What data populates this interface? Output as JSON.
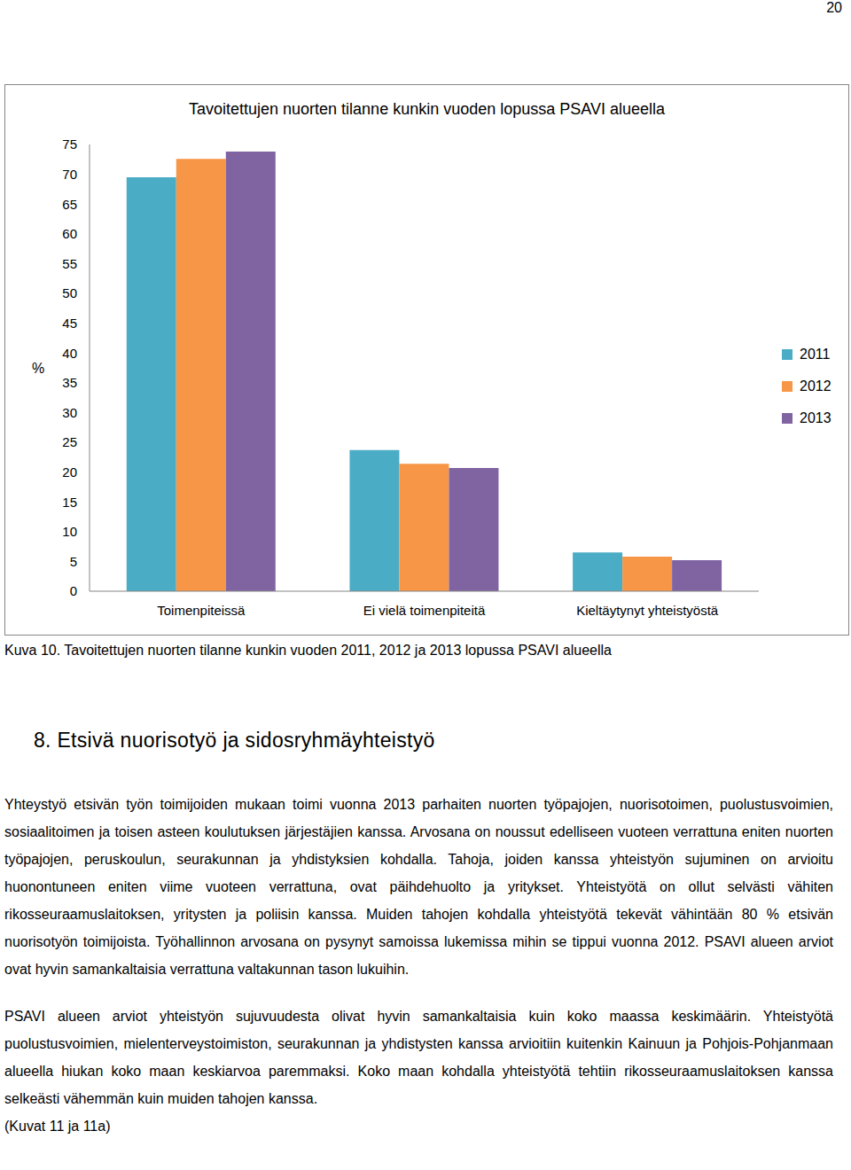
{
  "page_number": "20",
  "chart_data": {
    "type": "bar",
    "title": "Tavoitettujen nuorten tilanne kunkin vuoden lopussa PSAVI alueella",
    "y_label": "%",
    "categories": [
      "Toimenpiteissä",
      "Ei vielä toimenpiteitä",
      "Kieltäytynyt yhteistyöstä"
    ],
    "series": [
      {
        "name": "2011",
        "color": "#4bacc6",
        "values": [
          69.5,
          23.7,
          6.5
        ]
      },
      {
        "name": "2012",
        "color": "#f79646",
        "values": [
          72.6,
          21.4,
          5.8
        ]
      },
      {
        "name": "2013",
        "color": "#8064a2",
        "values": [
          73.8,
          20.7,
          5.2
        ]
      }
    ],
    "ylim": [
      0,
      75
    ],
    "yticks": [
      0,
      5,
      10,
      15,
      20,
      25,
      30,
      35,
      40,
      45,
      50,
      55,
      60,
      65,
      70,
      75
    ],
    "grid": false,
    "legend": "right",
    "data_labels": false
  },
  "caption": "Kuva 10. Tavoitettujen nuorten tilanne kunkin vuoden 2011, 2012 ja 2013 lopussa PSAVI alueella",
  "heading": "8. Etsivä nuorisotyö ja sidosryhmäyhteistyö",
  "paragraphs": [
    "Yhteystyö etsivän työn toimijoiden mukaan toimi vuonna 2013 parhaiten nuorten työpajojen, nuorisotoimen, puolustusvoimien, sosiaalitoimen ja toisen asteen koulutuksen järjestäjien kanssa. Arvosana on noussut edelliseen vuoteen verrattuna eniten nuorten työpajojen, peruskoulun, seurakunnan ja yhdistyksien kohdalla. Tahoja, joiden kanssa yhteistyön sujuminen on arvioitu huonontuneen eniten viime vuoteen verrattuna, ovat päihdehuolto ja yritykset. Yhteistyötä on ollut selvästi vähiten rikosseuraamuslaitoksen, yritysten ja poliisin kanssa. Muiden tahojen kohdalla yhteistyötä tekevät vähintään 80 % etsivän nuorisotyön toimijoista. Työhallinnon arvosana on pysynyt samoissa lukemissa mihin se tippui vuonna 2012. PSAVI alueen arviot ovat hyvin samankaltaisia verrattuna valtakunnan tason lukuihin.",
    "PSAVI alueen arviot yhteistyön sujuvuudesta olivat hyvin samankaltaisia kuin koko maassa keskimäärin. Yhteistyötä puolustusvoimien, mielenterveystoimiston, seurakunnan ja yhdistysten kanssa arvioitiin kuitenkin Kainuun ja Pohjois-Pohjanmaan alueella hiukan koko maan keskiarvoa paremmaksi. Koko maan kohdalla yhteistyötä tehtiin rikosseuraamuslaitoksen kanssa selkeästi vähemmän kuin muiden tahojen kanssa.",
    "(Kuvat 11 ja 11a)"
  ]
}
